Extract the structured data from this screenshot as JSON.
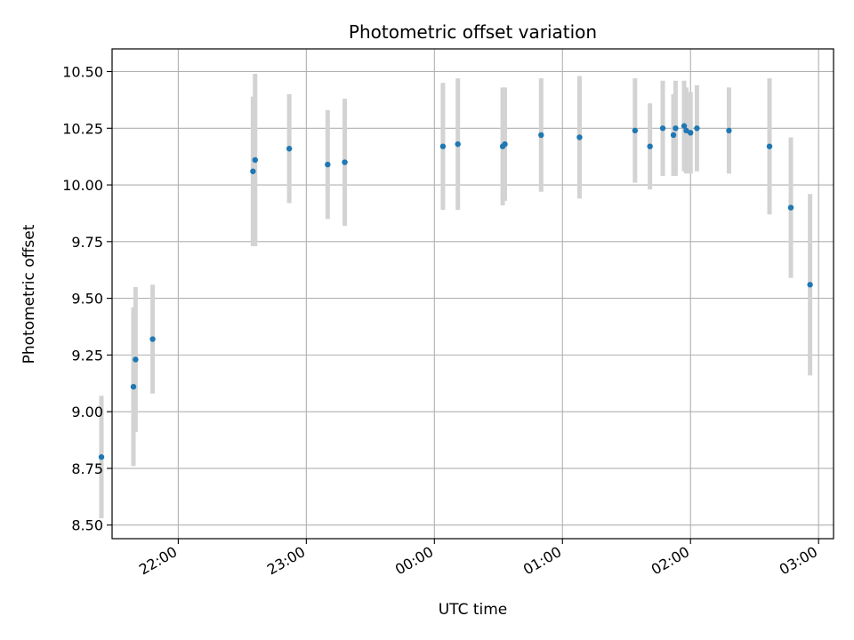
{
  "chart_data": {
    "type": "scatter",
    "title": "Photometric offset variation",
    "xlabel": "UTC time",
    "ylabel": "Photometric offset",
    "x_unit": "hours UTC (values past 24 fall after midnight)",
    "xlim": [
      "21:29",
      "03:07"
    ],
    "ylim": [
      8.44,
      10.6
    ],
    "x_ticks": [
      "22:00",
      "23:00",
      "00:00",
      "01:00",
      "02:00",
      "03:00"
    ],
    "x_tick_hours": [
      22,
      23,
      24,
      25,
      26,
      27
    ],
    "y_ticks": [
      8.5,
      8.75,
      9.0,
      9.25,
      9.5,
      9.75,
      10.0,
      10.25,
      10.5
    ],
    "y_tick_labels": [
      "8.50",
      "8.75",
      "9.00",
      "9.25",
      "9.50",
      "9.75",
      "10.00",
      "10.25",
      "10.50"
    ],
    "grid": true,
    "colors": {
      "point": "#1f77b4",
      "errorbar": "#d3d3d3",
      "grid": "#b0b0b0"
    },
    "series": [
      {
        "points": [
          {
            "x": "21:24",
            "y": 8.8,
            "err": 0.27
          },
          {
            "x": "21:39",
            "y": 9.11,
            "err": 0.35
          },
          {
            "x": "21:40",
            "y": 9.23,
            "err": 0.32
          },
          {
            "x": "21:48",
            "y": 9.32,
            "err": 0.24
          },
          {
            "x": "22:35",
            "y": 10.06,
            "err": 0.33
          },
          {
            "x": "22:36",
            "y": 10.11,
            "err": 0.38
          },
          {
            "x": "22:52",
            "y": 10.16,
            "err": 0.24
          },
          {
            "x": "23:10",
            "y": 10.09,
            "err": 0.24
          },
          {
            "x": "23:18",
            "y": 10.1,
            "err": 0.28
          },
          {
            "x": "00:04",
            "y": 10.17,
            "err": 0.28
          },
          {
            "x": "00:11",
            "y": 10.18,
            "err": 0.29
          },
          {
            "x": "00:32",
            "y": 10.17,
            "err": 0.26
          },
          {
            "x": "00:33",
            "y": 10.18,
            "err": 0.25
          },
          {
            "x": "00:50",
            "y": 10.22,
            "err": 0.25
          },
          {
            "x": "01:08",
            "y": 10.21,
            "err": 0.27
          },
          {
            "x": "01:34",
            "y": 10.24,
            "err": 0.23
          },
          {
            "x": "01:41",
            "y": 10.17,
            "err": 0.19
          },
          {
            "x": "01:47",
            "y": 10.25,
            "err": 0.21
          },
          {
            "x": "01:52",
            "y": 10.22,
            "err": 0.18
          },
          {
            "x": "01:53",
            "y": 10.25,
            "err": 0.21
          },
          {
            "x": "01:57",
            "y": 10.26,
            "err": 0.2
          },
          {
            "x": "01:58",
            "y": 10.24,
            "err": 0.19
          },
          {
            "x": "02:00",
            "y": 10.23,
            "err": 0.18
          },
          {
            "x": "02:03",
            "y": 10.25,
            "err": 0.19
          },
          {
            "x": "02:18",
            "y": 10.24,
            "err": 0.19
          },
          {
            "x": "02:37",
            "y": 10.17,
            "err": 0.3
          },
          {
            "x": "02:47",
            "y": 9.9,
            "err": 0.31
          },
          {
            "x": "02:56",
            "y": 9.56,
            "err": 0.4
          }
        ]
      }
    ]
  }
}
